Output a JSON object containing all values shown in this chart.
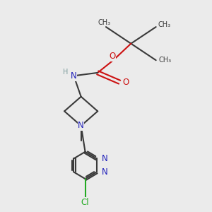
{
  "background_color": "#EBEBEB",
  "bond_color": "#3a3a3a",
  "nitrogen_color": "#2222BB",
  "oxygen_color": "#CC1111",
  "chlorine_color": "#22AA22",
  "hydrogen_color": "#7a9a9a",
  "figsize": [
    3.0,
    3.0
  ],
  "dpi": 100,
  "xlim": [
    0.0,
    1.0
  ],
  "ylim": [
    0.0,
    1.0
  ]
}
